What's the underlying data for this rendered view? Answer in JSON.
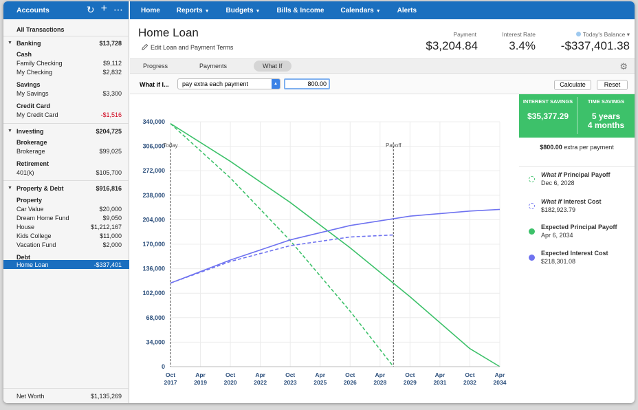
{
  "sidebar": {
    "title": "Accounts",
    "icons": [
      "refresh-icon",
      "add-icon",
      "more-icon"
    ],
    "all_transactions": "All Transactions",
    "banking": {
      "label": "Banking",
      "total": "$13,728",
      "cash_label": "Cash",
      "family_checking": {
        "label": "Family Checking",
        "value": "$9,112"
      },
      "my_checking": {
        "label": "My Checking",
        "value": "$2,832"
      },
      "savings_label": "Savings",
      "my_savings": {
        "label": "My Savings",
        "value": "$3,300"
      },
      "credit_label": "Credit Card",
      "my_credit": {
        "label": "My Credit Card",
        "value": "-$1,516"
      }
    },
    "investing": {
      "label": "Investing",
      "total": "$204,725",
      "brokerage_label": "Brokerage",
      "brokerage": {
        "label": "Brokerage",
        "value": "$99,025"
      },
      "retirement_label": "Retirement",
      "k401": {
        "label": "401(k)",
        "value": "$105,700"
      }
    },
    "property": {
      "label": "Property & Debt",
      "total": "$916,816",
      "property_label": "Property",
      "car": {
        "label": "Car Value",
        "value": "$20,000"
      },
      "dream": {
        "label": "Dream Home Fund",
        "value": "$9,050"
      },
      "house": {
        "label": "House",
        "value": "$1,212,167"
      },
      "kids": {
        "label": "Kids College",
        "value": "$11,000"
      },
      "vacation": {
        "label": "Vacation Fund",
        "value": "$2,000"
      },
      "debt_label": "Debt",
      "home_loan": {
        "label": "Home Loan",
        "value": "-$337,401"
      }
    },
    "net_worth": {
      "label": "Net Worth",
      "value": "$1,135,269"
    }
  },
  "nav": {
    "home": "Home",
    "reports": "Reports",
    "budgets": "Budgets",
    "bills": "Bills & Income",
    "calendars": "Calendars",
    "alerts": "Alerts"
  },
  "header": {
    "title": "Home Loan",
    "edit_terms": "Edit Loan and Payment Terms",
    "payment_label": "Payment",
    "payment_value": "$3,204.84",
    "rate_label": "Interest Rate",
    "rate_value": "3.4%",
    "balance_label": "Today's Balance ▾",
    "balance_value": "-$337,401.38"
  },
  "tabs": {
    "progress": "Progress",
    "payments": "Payments",
    "whatif": "What If"
  },
  "whatif": {
    "label": "What if I...",
    "select_value": "pay extra each payment",
    "amount": "800.00",
    "calculate": "Calculate",
    "reset": "Reset"
  },
  "savings": {
    "interest_label": "INTEREST SAVINGS",
    "interest_value": "$35,377.29",
    "time_label": "TIME SAVINGS",
    "time_value_1": "5 years",
    "time_value_2": "4 months",
    "extra_amount": "$800.00",
    "extra_text": " extra per payment"
  },
  "legend": [
    {
      "title_italic": "What If",
      "title_rest": " Principal Payoff",
      "date": "Dec 6, 2028",
      "color": "#3dc16a",
      "style": "dashed"
    },
    {
      "title_italic": "What If",
      "title_rest": " Interest Cost",
      "date": "$182,923.79",
      "color": "#6f73f0",
      "style": "dashed"
    },
    {
      "title_italic": "",
      "title_rest": "Expected Principal Payoff",
      "date": "Apr 6, 2034",
      "color": "#3dc16a",
      "style": "solid"
    },
    {
      "title_italic": "",
      "title_rest": "Expected Interest Cost",
      "date": "$218,301.08",
      "color": "#6f73f0",
      "style": "solid"
    }
  ],
  "chart_data": {
    "type": "line",
    "y_ticks": [
      "0",
      "34,000",
      "68,000",
      "102,000",
      "136,000",
      "170,000",
      "204,000",
      "238,000",
      "272,000",
      "306,000",
      "340,000"
    ],
    "ylim": [
      0,
      340000
    ],
    "x_ticks": [
      [
        "Oct",
        "2017"
      ],
      [
        "Apr",
        "2019"
      ],
      [
        "Oct",
        "2020"
      ],
      [
        "Apr",
        "2022"
      ],
      [
        "Oct",
        "2023"
      ],
      [
        "Apr",
        "2025"
      ],
      [
        "Oct",
        "2026"
      ],
      [
        "Apr",
        "2028"
      ],
      [
        "Oct",
        "2029"
      ],
      [
        "Apr",
        "2031"
      ],
      [
        "Oct",
        "2032"
      ],
      [
        "Apr",
        "2034"
      ]
    ],
    "x_tick_years": [
      2017.75,
      2019.25,
      2020.75,
      2022.25,
      2023.75,
      2025.25,
      2026.75,
      2028.25,
      2029.75,
      2031.25,
      2032.75,
      2034.25
    ],
    "annotations": [
      {
        "label": "Today",
        "x": 2017.75
      },
      {
        "label": "Payoff",
        "x": 2028.92
      }
    ],
    "series": [
      {
        "name": "Expected Principal Payoff",
        "color": "#3dc16a",
        "dash": false,
        "x": [
          2017.75,
          2020.75,
          2023.75,
          2026.75,
          2029.75,
          2032.75,
          2034.25
        ],
        "y": [
          337400,
          285000,
          228000,
          165000,
          97000,
          25000,
          0
        ]
      },
      {
        "name": "What If Principal Payoff",
        "color": "#3dc16a",
        "dash": true,
        "x": [
          2017.75,
          2020.75,
          2023.75,
          2026.75,
          2028.92
        ],
        "y": [
          337400,
          262000,
          175000,
          77000,
          0
        ]
      },
      {
        "name": "Expected Interest Cost",
        "color": "#6f73f0",
        "dash": false,
        "x": [
          2017.75,
          2020.75,
          2023.75,
          2026.75,
          2029.75,
          2032.75,
          2034.25
        ],
        "y": [
          116000,
          148000,
          176000,
          196000,
          209000,
          216000,
          218300
        ]
      },
      {
        "name": "What If Interest Cost",
        "color": "#6f73f0",
        "dash": true,
        "x": [
          2017.75,
          2020.75,
          2023.75,
          2026.75,
          2028.92
        ],
        "y": [
          116000,
          146000,
          168000,
          180000,
          182900
        ]
      }
    ]
  }
}
